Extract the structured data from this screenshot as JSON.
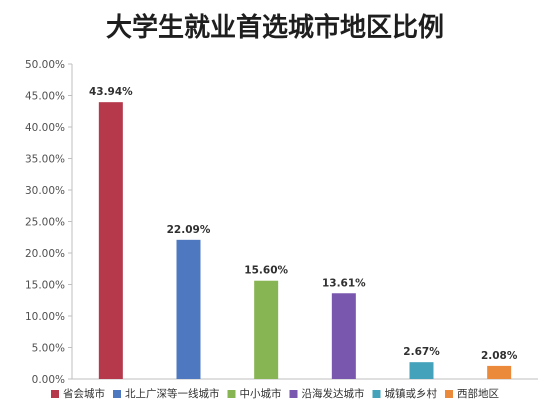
{
  "chart_data": {
    "type": "bar",
    "title": "大学生就业首选城市地区比例",
    "xlabel": "",
    "ylabel": "",
    "categories": [
      "省会城市",
      "北上广深等一线城市",
      "中小城市",
      "沿海发达城市",
      "城镇或乡村",
      "西部地区"
    ],
    "values": [
      43.94,
      22.09,
      15.6,
      13.61,
      2.67,
      2.08
    ],
    "data_labels": [
      "43.94%",
      "22.09%",
      "15.60%",
      "13.61%",
      "2.67%",
      "2.08%"
    ],
    "colors": [
      "#B5394A",
      "#4E78C0",
      "#88B553",
      "#7A57AE",
      "#45A2BB",
      "#EC8A3C"
    ],
    "ylim": [
      0,
      50
    ],
    "yticks": [
      0,
      5,
      10,
      15,
      20,
      25,
      30,
      35,
      40,
      45,
      50
    ],
    "ytick_labels": [
      "0.00%",
      "5.00%",
      "10.00%",
      "15.00%",
      "20.00%",
      "25.00%",
      "30.00%",
      "35.00%",
      "40.00%",
      "45.00%",
      "50.00%"
    ],
    "grid": false,
    "legend_position": "bottom",
    "axis_color": "#BFBFBF"
  }
}
